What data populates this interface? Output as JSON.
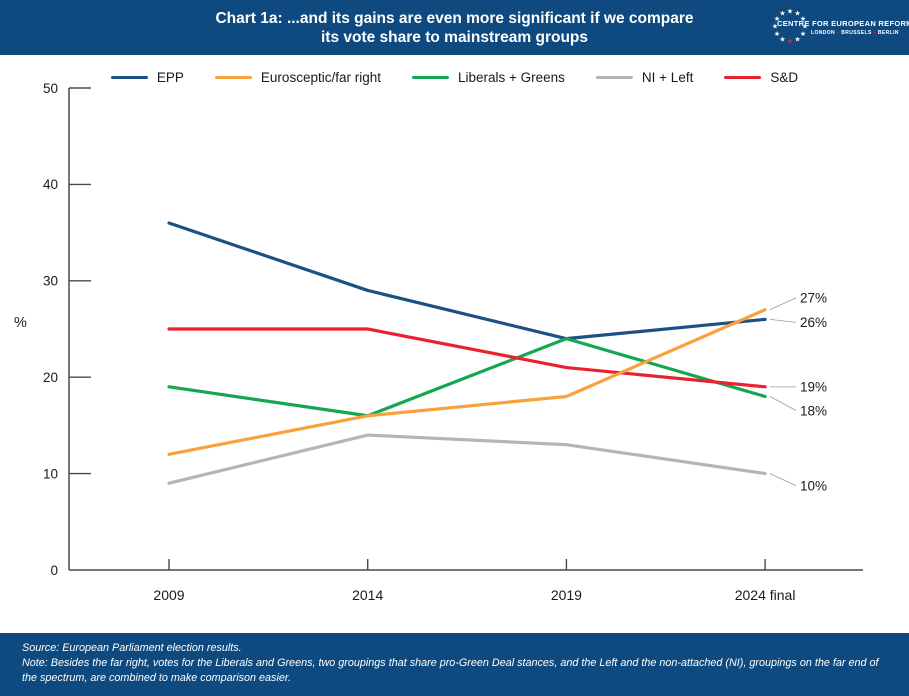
{
  "theme": {
    "band_bg": "#0e4a7f",
    "accent_red": "#e8232e",
    "axis_color": "#4a4a4a",
    "text_color": "#1a1a1a",
    "leader_color": "#9a9a9a"
  },
  "header": {
    "title_line1": "Chart 1a: ...and its gains are even more significant if we compare",
    "title_line2": "its vote share to mainstream groups",
    "logo": {
      "name": "CENTRE FOR EUROPEAN REFORM",
      "cities": [
        "LONDON",
        "BRUSSELS",
        "BERLIN"
      ]
    }
  },
  "chart_data": {
    "type": "line",
    "categories": [
      "2009",
      "2014",
      "2019",
      "2024 final"
    ],
    "series": [
      {
        "name": "EPP",
        "color": "#1d5084",
        "values": [
          36,
          29,
          24,
          26
        ],
        "end_label": "26%"
      },
      {
        "name": "Eurosceptic/far right",
        "color": "#f9a13b",
        "values": [
          12,
          16,
          18,
          27
        ],
        "end_label": "27%"
      },
      {
        "name": "Liberals + Greens",
        "color": "#14a650",
        "values": [
          19,
          16,
          24,
          18
        ],
        "end_label": "18%"
      },
      {
        "name": "NI + Left",
        "color": "#b5b5b5",
        "values": [
          9,
          14,
          13,
          10
        ],
        "end_label": "10%"
      },
      {
        "name": "S&D",
        "color": "#e8232e",
        "values": [
          25,
          25,
          21,
          19
        ],
        "end_label": "19%"
      }
    ],
    "ylabel": "%",
    "ylim": [
      0,
      50
    ],
    "yticks": [
      0,
      10,
      20,
      30,
      40,
      50
    ],
    "legend_position": "top",
    "grid": false
  },
  "footer": {
    "source": "Source: European Parliament election results.",
    "note": "Note: Besides the far right, votes for the Liberals and Greens, two groupings that share pro-Green Deal stances, and the Left and the non-attached (NI), groupings on the far end of the spectrum, are combined to make comparison easier."
  }
}
